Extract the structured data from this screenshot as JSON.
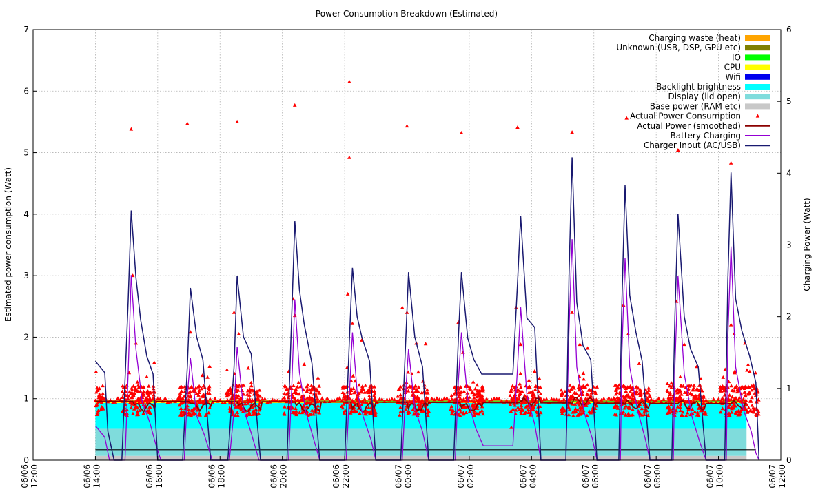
{
  "chart_data": {
    "type": "area",
    "title": "Power Consumption Breakdown (Estimated)",
    "ylabel": "Estimated power consumption (Watt)",
    "y2label": "Charging Power (Watt)",
    "xlabel": "",
    "ylim": [
      0,
      7
    ],
    "y2lim": [
      0,
      6
    ],
    "xlim": [
      "06/06 12:00",
      "06/07 12:00"
    ],
    "grid": true,
    "legend_position": "top-right",
    "x_ticks": [
      {
        "date": "06/06",
        "time": "12:00",
        "hour": 0
      },
      {
        "date": "06/06",
        "time": "14:00",
        "hour": 2
      },
      {
        "date": "06/06",
        "time": "16:00",
        "hour": 4
      },
      {
        "date": "06/06",
        "time": "18:00",
        "hour": 6
      },
      {
        "date": "06/06",
        "time": "20:00",
        "hour": 8
      },
      {
        "date": "06/06",
        "time": "22:00",
        "hour": 10
      },
      {
        "date": "06/07",
        "time": "00:00",
        "hour": 12
      },
      {
        "date": "06/07",
        "time": "02:00",
        "hour": 14
      },
      {
        "date": "06/07",
        "time": "04:00",
        "hour": 16
      },
      {
        "date": "06/07",
        "time": "06:00",
        "hour": 18
      },
      {
        "date": "06/07",
        "time": "08:00",
        "hour": 20
      },
      {
        "date": "06/07",
        "time": "10:00",
        "hour": 22
      },
      {
        "date": "06/07",
        "time": "12:00",
        "hour": 24
      }
    ],
    "y_ticks": [
      "0",
      "1",
      "2",
      "3",
      "4",
      "5",
      "6",
      "7"
    ],
    "y2_ticks": [
      "0",
      "1",
      "2",
      "3",
      "4",
      "5",
      "6"
    ],
    "data_range_hours": [
      2.0,
      22.9
    ],
    "stacked_layers": [
      {
        "name": "Base power (RAM etc)",
        "color": "#c8c8c8",
        "value": 0.07
      },
      {
        "name": "Display (lid open)",
        "color": "#7fdcdc",
        "value": 0.44
      },
      {
        "name": "Backlight brightness",
        "color": "#00ffff",
        "value": 0.42
      },
      {
        "name": "Wifi",
        "color": "#0000ee",
        "value": 0.0
      },
      {
        "name": "CPU",
        "color": "#ffff00",
        "value": 0.02
      },
      {
        "name": "IO",
        "color": "#00ff00",
        "value": 0.01
      },
      {
        "name": "Unknown (USB, DSP, GPU etc)",
        "color": "#808000",
        "value": 0.01
      },
      {
        "name": "Charging waste (heat)",
        "color": "#ffa500",
        "value": 0.01
      }
    ],
    "legend": [
      {
        "name": "Charging waste (heat)",
        "kind": "box",
        "color": "#ffa500"
      },
      {
        "name": "Unknown (USB, DSP, GPU etc)",
        "kind": "box",
        "color": "#808000"
      },
      {
        "name": "IO",
        "kind": "box",
        "color": "#00ff00"
      },
      {
        "name": "CPU",
        "kind": "box",
        "color": "#ffff00"
      },
      {
        "name": "Wifi",
        "kind": "box",
        "color": "#0000ee"
      },
      {
        "name": "Backlight brightness",
        "kind": "box",
        "color": "#00ffff"
      },
      {
        "name": "Display (lid open)",
        "kind": "box",
        "color": "#7fdcdc"
      },
      {
        "name": "Base power (RAM etc)",
        "kind": "box",
        "color": "#c8c8c8"
      },
      {
        "name": "Actual Power Consumption",
        "kind": "point",
        "color": "#ff0000"
      },
      {
        "name": "Actual Power (smoothed)",
        "kind": "line",
        "color": "#8b0000"
      },
      {
        "name": "Battery Charging",
        "kind": "line",
        "color": "#9400d3"
      },
      {
        "name": "Charger Input (AC/USB)",
        "kind": "line",
        "color": "#191970"
      }
    ],
    "baseline_line": {
      "y": 0.17,
      "color": "#000000"
    },
    "charger_input": {
      "name": "Charger Input (AC/USB)",
      "axis": "y2",
      "color": "#191970",
      "points": [
        [
          2.0,
          1.38
        ],
        [
          2.3,
          1.22
        ],
        [
          2.4,
          0.4
        ],
        [
          2.6,
          0.0
        ],
        [
          2.85,
          0.0
        ],
        [
          3.05,
          2.2
        ],
        [
          3.15,
          3.48
        ],
        [
          3.3,
          2.55
        ],
        [
          3.45,
          1.96
        ],
        [
          3.65,
          1.45
        ],
        [
          3.85,
          1.2
        ],
        [
          4.0,
          0.0
        ],
        [
          4.8,
          0.0
        ],
        [
          4.95,
          1.3
        ],
        [
          5.05,
          2.4
        ],
        [
          5.25,
          1.72
        ],
        [
          5.45,
          1.4
        ],
        [
          5.7,
          0.0
        ],
        [
          6.25,
          0.0
        ],
        [
          6.45,
          1.3
        ],
        [
          6.55,
          2.57
        ],
        [
          6.75,
          1.72
        ],
        [
          7.0,
          1.48
        ],
        [
          7.3,
          0.0
        ],
        [
          8.15,
          0.0
        ],
        [
          8.3,
          2.0
        ],
        [
          8.4,
          3.33
        ],
        [
          8.55,
          2.37
        ],
        [
          8.7,
          1.9
        ],
        [
          8.95,
          1.35
        ],
        [
          9.2,
          0.0
        ],
        [
          10.0,
          0.0
        ],
        [
          10.15,
          1.65
        ],
        [
          10.25,
          2.68
        ],
        [
          10.4,
          2.0
        ],
        [
          10.55,
          1.72
        ],
        [
          10.8,
          1.38
        ],
        [
          11.0,
          0.0
        ],
        [
          11.8,
          0.0
        ],
        [
          11.95,
          1.55
        ],
        [
          12.05,
          2.62
        ],
        [
          12.25,
          1.72
        ],
        [
          12.5,
          1.3
        ],
        [
          12.7,
          0.0
        ],
        [
          13.5,
          0.0
        ],
        [
          13.65,
          1.7
        ],
        [
          13.75,
          2.62
        ],
        [
          13.95,
          1.7
        ],
        [
          14.15,
          1.4
        ],
        [
          14.4,
          1.2
        ],
        [
          15.4,
          1.2
        ],
        [
          15.55,
          2.48
        ],
        [
          15.65,
          3.4
        ],
        [
          15.85,
          1.98
        ],
        [
          16.1,
          1.85
        ],
        [
          16.3,
          0.0
        ],
        [
          17.1,
          0.0
        ],
        [
          17.2,
          2.55
        ],
        [
          17.3,
          4.22
        ],
        [
          17.45,
          2.2
        ],
        [
          17.65,
          1.6
        ],
        [
          17.9,
          1.4
        ],
        [
          18.1,
          0.0
        ],
        [
          18.8,
          0.0
        ],
        [
          18.9,
          2.2
        ],
        [
          19.0,
          3.83
        ],
        [
          19.15,
          2.3
        ],
        [
          19.35,
          1.78
        ],
        [
          19.55,
          1.38
        ],
        [
          19.8,
          0.0
        ],
        [
          20.5,
          0.0
        ],
        [
          20.6,
          2.0
        ],
        [
          20.7,
          3.43
        ],
        [
          20.9,
          2.0
        ],
        [
          21.1,
          1.55
        ],
        [
          21.35,
          1.3
        ],
        [
          21.6,
          0.0
        ],
        [
          22.2,
          0.0
        ],
        [
          22.3,
          2.5
        ],
        [
          22.4,
          4.01
        ],
        [
          22.55,
          2.25
        ],
        [
          22.75,
          1.8
        ],
        [
          23.0,
          1.45
        ],
        [
          23.2,
          1.08
        ],
        [
          23.3,
          0.0
        ]
      ]
    },
    "battery_charging": {
      "name": "Battery Charging",
      "axis": "y2",
      "color": "#9400d3",
      "points": [
        [
          2.0,
          0.48
        ],
        [
          2.3,
          0.32
        ],
        [
          2.45,
          0.0
        ],
        [
          2.95,
          0.0
        ],
        [
          3.05,
          1.2
        ],
        [
          3.15,
          2.58
        ],
        [
          3.3,
          1.55
        ],
        [
          3.5,
          0.82
        ],
        [
          3.75,
          0.52
        ],
        [
          3.95,
          0.2
        ],
        [
          4.1,
          0.0
        ],
        [
          4.85,
          0.0
        ],
        [
          4.95,
          0.9
        ],
        [
          5.05,
          1.42
        ],
        [
          5.25,
          0.62
        ],
        [
          5.5,
          0.35
        ],
        [
          5.75,
          0.0
        ],
        [
          6.3,
          0.0
        ],
        [
          6.45,
          0.7
        ],
        [
          6.55,
          1.58
        ],
        [
          6.75,
          0.72
        ],
        [
          7.0,
          0.38
        ],
        [
          7.25,
          0.0
        ],
        [
          8.2,
          0.0
        ],
        [
          8.3,
          1.0
        ],
        [
          8.4,
          2.24
        ],
        [
          8.55,
          1.22
        ],
        [
          8.75,
          0.68
        ],
        [
          9.0,
          0.3
        ],
        [
          9.2,
          0.0
        ],
        [
          10.05,
          0.0
        ],
        [
          10.15,
          0.9
        ],
        [
          10.25,
          1.78
        ],
        [
          10.4,
          0.95
        ],
        [
          10.6,
          0.6
        ],
        [
          10.85,
          0.28
        ],
        [
          11.0,
          0.0
        ],
        [
          11.85,
          0.0
        ],
        [
          11.95,
          0.9
        ],
        [
          12.05,
          1.55
        ],
        [
          12.25,
          0.72
        ],
        [
          12.5,
          0.4
        ],
        [
          12.7,
          0.0
        ],
        [
          13.55,
          0.0
        ],
        [
          13.65,
          1.1
        ],
        [
          13.75,
          1.78
        ],
        [
          13.95,
          0.85
        ],
        [
          14.2,
          0.45
        ],
        [
          14.45,
          0.2
        ],
        [
          15.4,
          0.2
        ],
        [
          15.55,
          1.3
        ],
        [
          15.65,
          2.13
        ],
        [
          15.85,
          0.9
        ],
        [
          16.1,
          0.5
        ],
        [
          16.3,
          0.0
        ],
        [
          17.1,
          0.0
        ],
        [
          17.2,
          1.8
        ],
        [
          17.3,
          3.08
        ],
        [
          17.45,
          1.3
        ],
        [
          17.7,
          0.65
        ],
        [
          17.95,
          0.3
        ],
        [
          18.1,
          0.0
        ],
        [
          18.85,
          0.0
        ],
        [
          18.9,
          1.5
        ],
        [
          19.0,
          2.82
        ],
        [
          19.15,
          1.3
        ],
        [
          19.4,
          0.7
        ],
        [
          19.65,
          0.3
        ],
        [
          19.8,
          0.0
        ],
        [
          20.55,
          0.0
        ],
        [
          20.6,
          1.3
        ],
        [
          20.7,
          2.57
        ],
        [
          20.9,
          1.2
        ],
        [
          21.15,
          0.6
        ],
        [
          21.4,
          0.25
        ],
        [
          21.6,
          0.0
        ],
        [
          22.25,
          0.0
        ],
        [
          22.3,
          1.7
        ],
        [
          22.4,
          2.98
        ],
        [
          22.55,
          1.3
        ],
        [
          22.8,
          0.7
        ],
        [
          23.05,
          0.4
        ],
        [
          23.2,
          0.1
        ],
        [
          23.3,
          0.0
        ]
      ]
    },
    "smoothed_power": {
      "name": "Actual Power (smoothed)",
      "axis": "y",
      "color": "#8b0000",
      "base": 0.96,
      "dips": [
        [
          3.2,
          0.86,
          3.9
        ],
        [
          5.0,
          0.88,
          5.7
        ],
        [
          6.55,
          0.86,
          7.3
        ],
        [
          8.4,
          0.86,
          9.2
        ],
        [
          10.25,
          0.86,
          11.0
        ],
        [
          12.05,
          0.86,
          12.7
        ],
        [
          13.75,
          0.85,
          14.45
        ],
        [
          15.65,
          0.95,
          16.3
        ],
        [
          17.3,
          0.95,
          18.1
        ],
        [
          19.0,
          0.9,
          19.8
        ],
        [
          20.7,
          0.9,
          21.6
        ],
        [
          22.4,
          0.9,
          23.3
        ]
      ]
    },
    "actual_power_outliers": [
      [
        3.15,
        5.38
      ],
      [
        4.95,
        5.47
      ],
      [
        6.55,
        5.5
      ],
      [
        8.4,
        5.77
      ],
      [
        10.15,
        6.15
      ],
      [
        10.15,
        4.92
      ],
      [
        12.0,
        5.43
      ],
      [
        13.75,
        5.32
      ],
      [
        15.55,
        5.41
      ],
      [
        17.3,
        5.33
      ],
      [
        19.05,
        5.56
      ],
      [
        20.7,
        5.04
      ],
      [
        22.4,
        4.83
      ],
      [
        3.2,
        3.0
      ],
      [
        3.3,
        1.9
      ],
      [
        5.05,
        2.08
      ],
      [
        6.45,
        2.4
      ],
      [
        6.6,
        2.05
      ],
      [
        8.35,
        2.62
      ],
      [
        8.4,
        2.35
      ],
      [
        10.1,
        2.7
      ],
      [
        10.25,
        2.22
      ],
      [
        10.55,
        1.95
      ],
      [
        11.85,
        2.48
      ],
      [
        12.0,
        2.4
      ],
      [
        12.3,
        1.9
      ],
      [
        12.6,
        1.89
      ],
      [
        13.65,
        2.24
      ],
      [
        13.8,
        1.75
      ],
      [
        15.5,
        2.48
      ],
      [
        15.65,
        1.88
      ],
      [
        17.3,
        2.4
      ],
      [
        17.55,
        1.88
      ],
      [
        17.8,
        1.82
      ],
      [
        18.95,
        2.52
      ],
      [
        19.1,
        2.05
      ],
      [
        19.45,
        1.57
      ],
      [
        20.65,
        2.58
      ],
      [
        20.9,
        1.88
      ],
      [
        21.3,
        1.52
      ],
      [
        22.4,
        2.2
      ],
      [
        22.5,
        2.05
      ],
      [
        22.85,
        1.9
      ],
      [
        22.95,
        1.55
      ],
      [
        15.35,
        0.53
      ]
    ]
  }
}
